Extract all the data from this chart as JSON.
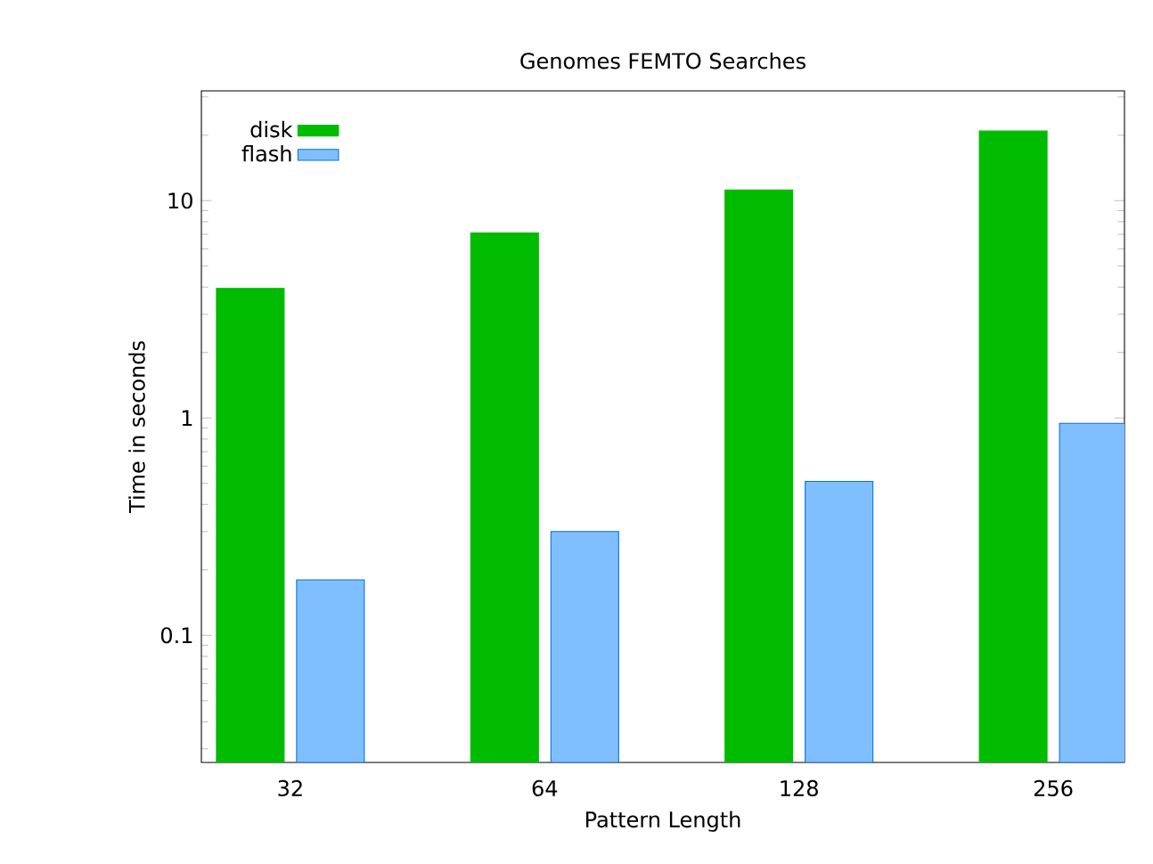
{
  "chart_data": {
    "type": "bar",
    "title": "Genomes FEMTO Searches",
    "xlabel": "Pattern Length",
    "ylabel": "Time in seconds",
    "categories": [
      "32",
      "64",
      "128",
      "256"
    ],
    "series": [
      {
        "name": "disk",
        "color": "#00bb00",
        "values": [
          3.95,
          7.1,
          11.2,
          20.9
        ]
      },
      {
        "name": "flash",
        "color": "#80bfff",
        "values": [
          0.18,
          0.3,
          0.51,
          0.945
        ]
      }
    ],
    "log": "y",
    "ylim": [
      0.026,
      32
    ],
    "yticks": [
      0.1,
      1,
      10
    ],
    "legend": "top left",
    "grid": false
  }
}
